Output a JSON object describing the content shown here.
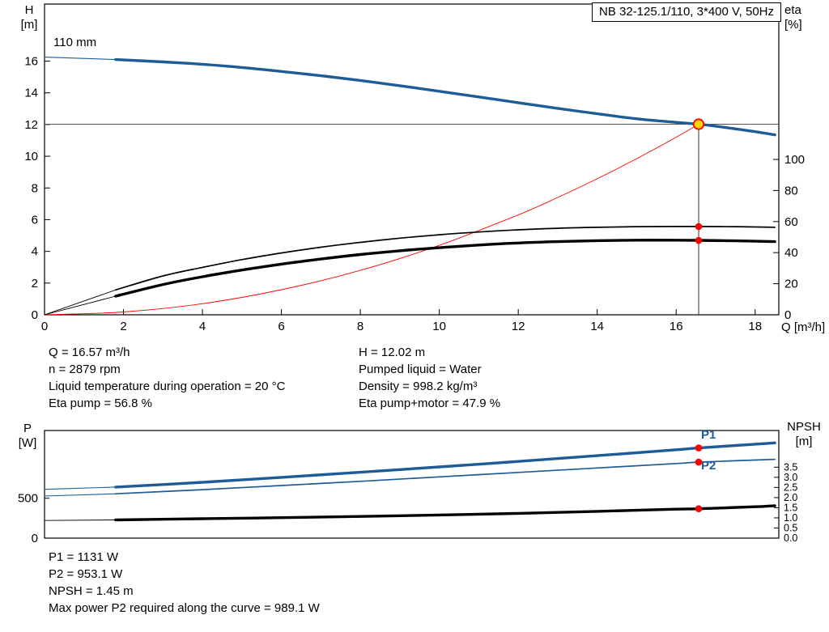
{
  "title_box": "NB 32-125.1/110, 3*400 V, 50Hz",
  "impeller_label": "110 mm",
  "axis_labels": {
    "h_top": "H",
    "h_unit": "[m]",
    "eta_top": "eta",
    "eta_unit": "[%]",
    "q": "Q [m³/h]",
    "p_top": "P",
    "p_unit": "[W]",
    "npsh_top": "NPSH",
    "npsh_unit": "[m]"
  },
  "accent_colors": {
    "curve_blue": "#1d5c96",
    "marker_red": "#ff0000",
    "duty_yellow": "#ffd400",
    "crosshair_gray": "#555555",
    "black": "#000000"
  },
  "operating_point_text": {
    "left": [
      "Q = 16.57 m³/h",
      "n = 2879 rpm",
      "Liquid temperature during operation = 20 °C",
      "Eta pump = 56.8 %"
    ],
    "right": [
      "H = 12.02 m",
      "Pumped liquid = Water",
      "Density = 998.2 kg/m³",
      "Eta pump+motor = 47.9 %"
    ]
  },
  "power_text": [
    "P1 = 1131 W",
    "P2 = 953.1 W",
    "NPSH = 1.45 m",
    "Max power P2 required along the curve = 989.1 W"
  ],
  "curve_labels": {
    "p1": "P1",
    "p2": "P2"
  },
  "chart_data": [
    {
      "type": "line",
      "title": "NB 32-125.1/110, 3*400 V, 50Hz",
      "xlabel": "Q [m³/h]",
      "ylabel_left": "H [m]",
      "ylabel_right": "eta [%]",
      "xlim": [
        0,
        18.6
      ],
      "ylim_left": [
        0,
        19.6
      ],
      "x_ticks": [
        0,
        2,
        4,
        6,
        8,
        10,
        12,
        14,
        16,
        18
      ],
      "y_ticks_left": [
        0,
        2,
        4,
        6,
        8,
        10,
        12,
        14,
        16
      ],
      "right_axis": {
        "ticks": [
          0,
          20,
          40,
          60,
          80,
          100
        ],
        "h_equivalent_per_percent": 0.098
      },
      "duty_point": {
        "q": 16.57,
        "h": 12.02
      },
      "crosshair": {
        "h": 12.02,
        "q": 16.57
      },
      "series": [
        {
          "name": "pump-curve-lead",
          "axis": "left",
          "color": "#1d5c96",
          "weight": "lead",
          "points": [
            [
              0,
              16.25
            ],
            [
              1.8,
              16.1
            ]
          ]
        },
        {
          "name": "pump-curve",
          "axis": "left",
          "color": "#1d5c96",
          "weight": "thick",
          "points": [
            [
              1.8,
              16.1
            ],
            [
              3,
              15.95
            ],
            [
              4,
              15.8
            ],
            [
              5,
              15.6
            ],
            [
              6,
              15.35
            ],
            [
              7,
              15.08
            ],
            [
              8,
              14.78
            ],
            [
              9,
              14.45
            ],
            [
              10,
              14.1
            ],
            [
              11,
              13.74
            ],
            [
              12,
              13.38
            ],
            [
              13,
              13.02
            ],
            [
              14,
              12.68
            ],
            [
              15,
              12.36
            ],
            [
              16,
              12.14
            ],
            [
              16.57,
              12.02
            ],
            [
              17,
              11.9
            ],
            [
              18,
              11.55
            ],
            [
              18.5,
              11.35
            ]
          ]
        },
        {
          "name": "system-curve",
          "axis": "left",
          "color": "#ff0000",
          "weight": "hairline",
          "points": [
            [
              0,
              0
            ],
            [
              2,
              0.18
            ],
            [
              4,
              0.7
            ],
            [
              6,
              1.58
            ],
            [
              8,
              2.8
            ],
            [
              10,
              4.38
            ],
            [
              12,
              6.3
            ],
            [
              13,
              7.4
            ],
            [
              14,
              8.58
            ],
            [
              15,
              9.85
            ],
            [
              16,
              11.2
            ],
            [
              16.57,
              12.02
            ]
          ]
        },
        {
          "name": "eta-pump-lead",
          "axis": "eta",
          "color": "#000000",
          "weight": "hairline",
          "points": [
            [
              0,
              0
            ],
            [
              1.8,
              16
            ]
          ]
        },
        {
          "name": "eta-pump-curve",
          "axis": "eta",
          "color": "#000000",
          "weight": "thin",
          "points": [
            [
              1.8,
              16
            ],
            [
              3,
              25
            ],
            [
              4,
              30.5
            ],
            [
              5,
              35.5
            ],
            [
              6,
              39.8
            ],
            [
              7,
              43.5
            ],
            [
              8,
              46.6
            ],
            [
              9,
              49.3
            ],
            [
              10,
              51.5
            ],
            [
              11,
              53.3
            ],
            [
              12,
              54.7
            ],
            [
              13,
              55.7
            ],
            [
              14,
              56.3
            ],
            [
              15,
              56.7
            ],
            [
              16,
              56.8
            ],
            [
              16.57,
              56.8
            ],
            [
              17.5,
              56.7
            ],
            [
              18.5,
              56.3
            ]
          ]
        },
        {
          "name": "eta-pump-motor-lead",
          "axis": "eta",
          "color": "#000000",
          "weight": "hairline",
          "points": [
            [
              0,
              0
            ],
            [
              1.8,
              12
            ]
          ]
        },
        {
          "name": "eta-pump-motor-curve",
          "axis": "eta",
          "color": "#000000",
          "weight": "thick",
          "points": [
            [
              1.8,
              12
            ],
            [
              3,
              19.5
            ],
            [
              4,
              24.5
            ],
            [
              5,
              28.8
            ],
            [
              6,
              32.6
            ],
            [
              7,
              35.9
            ],
            [
              8,
              38.8
            ],
            [
              9,
              41.2
            ],
            [
              10,
              43.2
            ],
            [
              11,
              44.9
            ],
            [
              12,
              46.2
            ],
            [
              13,
              47.1
            ],
            [
              14,
              47.7
            ],
            [
              15,
              48.0
            ],
            [
              16,
              48.0
            ],
            [
              16.57,
              47.9
            ],
            [
              17.5,
              47.6
            ],
            [
              18.5,
              47.1
            ]
          ]
        }
      ],
      "markers": [
        {
          "name": "duty-point",
          "axis": "left",
          "q": 16.57,
          "v": 12.02,
          "style": "duty"
        },
        {
          "name": "eta-pump-point",
          "axis": "eta",
          "q": 16.57,
          "v": 56.8,
          "style": "dot"
        },
        {
          "name": "eta-pump-motor-point",
          "axis": "eta",
          "q": 16.57,
          "v": 47.9,
          "style": "dot"
        }
      ]
    },
    {
      "type": "line",
      "ylabel_left": "P [W]",
      "ylabel_right": "NPSH [m]",
      "xlim": [
        0,
        18.6
      ],
      "ylim_left": [
        0,
        1350
      ],
      "y_ticks_left": [
        0,
        500
      ],
      "npsh_axis": {
        "ticks": [
          0.0,
          0.5,
          1.0,
          1.5,
          2.0,
          2.5,
          3.0,
          3.5
        ],
        "ylim": [
          0,
          5.31
        ]
      },
      "series": [
        {
          "name": "p1-lead",
          "axis": "left",
          "color": "#1d5c96",
          "weight": "lead",
          "points": [
            [
              0,
              612
            ],
            [
              1.8,
              640
            ]
          ]
        },
        {
          "name": "p1-curve",
          "axis": "left",
          "color": "#1d5c96",
          "weight": "thick",
          "points": [
            [
              1.8,
              640
            ],
            [
              4,
              700
            ],
            [
              6,
              762
            ],
            [
              8,
              826
            ],
            [
              10,
              893
            ],
            [
              12,
              962
            ],
            [
              14,
              1034
            ],
            [
              16,
              1108
            ],
            [
              16.57,
              1131
            ],
            [
              18,
              1178
            ],
            [
              18.5,
              1195
            ]
          ]
        },
        {
          "name": "p2-lead",
          "axis": "left",
          "color": "#1d5c96",
          "weight": "lead",
          "points": [
            [
              0,
              528
            ],
            [
              1.8,
              556
            ]
          ]
        },
        {
          "name": "p2-curve",
          "axis": "left",
          "color": "#1d5c96",
          "weight": "thin",
          "points": [
            [
              1.8,
              556
            ],
            [
              4,
              608
            ],
            [
              6,
              660
            ],
            [
              8,
              713
            ],
            [
              10,
              768
            ],
            [
              12,
              824
            ],
            [
              14,
              880
            ],
            [
              16,
              936
            ],
            [
              16.57,
              953.1
            ],
            [
              18,
              980
            ],
            [
              18.5,
              989.1
            ]
          ]
        },
        {
          "name": "npsh-lead",
          "axis": "npsh",
          "color": "#000000",
          "weight": "hairline",
          "points": [
            [
              0,
              0.87
            ],
            [
              1.8,
              0.9
            ]
          ]
        },
        {
          "name": "npsh-curve",
          "axis": "npsh",
          "color": "#000000",
          "weight": "thick",
          "points": [
            [
              1.8,
              0.9
            ],
            [
              4,
              0.96
            ],
            [
              6,
              1.01
            ],
            [
              8,
              1.07
            ],
            [
              10,
              1.14
            ],
            [
              12,
              1.22
            ],
            [
              14,
              1.32
            ],
            [
              16,
              1.43
            ],
            [
              16.57,
              1.45
            ],
            [
              18,
              1.55
            ],
            [
              18.5,
              1.6
            ]
          ]
        }
      ],
      "markers": [
        {
          "name": "p1-point",
          "axis": "left",
          "q": 16.57,
          "v": 1131,
          "style": "dot"
        },
        {
          "name": "p2-point",
          "axis": "left",
          "q": 16.57,
          "v": 953.1,
          "style": "dot"
        },
        {
          "name": "npsh-point",
          "axis": "npsh",
          "q": 16.57,
          "v": 1.45,
          "style": "dot"
        }
      ]
    }
  ]
}
